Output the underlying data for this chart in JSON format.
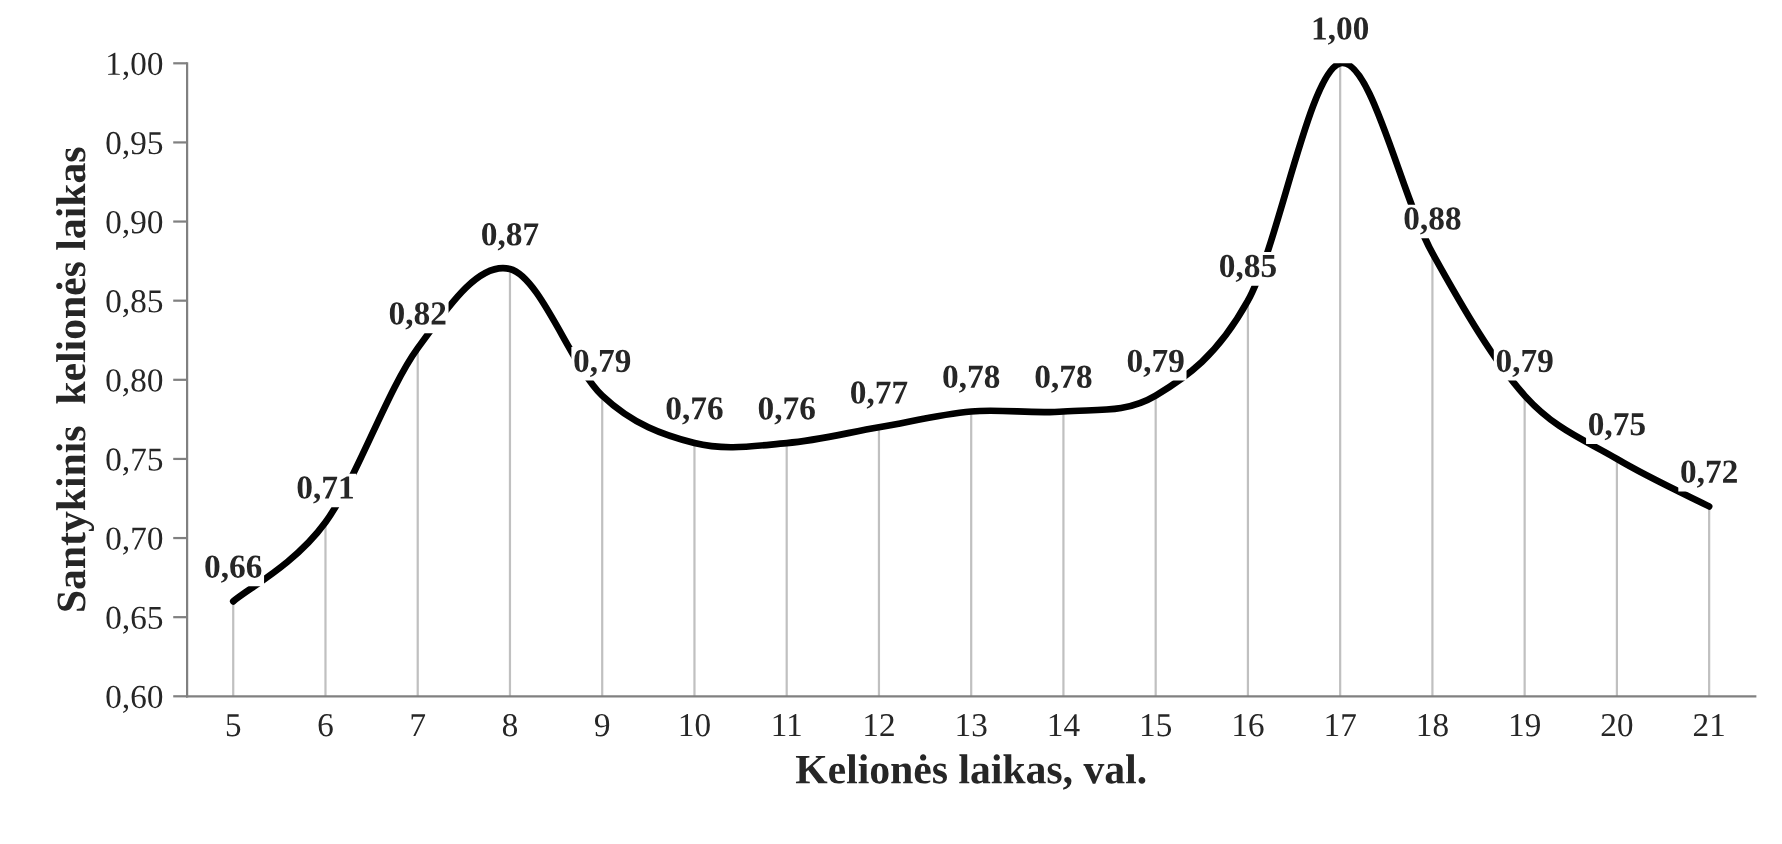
{
  "chart_data": {
    "type": "line",
    "xlabel": "Kelionės laikas, val.",
    "ylabel": "Santykinis  kelionės laikas",
    "categories": [
      "5",
      "6",
      "7",
      "8",
      "9",
      "10",
      "11",
      "12",
      "13",
      "14",
      "15",
      "16",
      "17",
      "18",
      "19",
      "20",
      "21"
    ],
    "series": [
      {
        "color": "#000000",
        "values": [
          0.66,
          0.71,
          0.82,
          0.87,
          0.79,
          0.76,
          0.76,
          0.77,
          0.78,
          0.78,
          0.79,
          0.85,
          1.0,
          0.88,
          0.79,
          0.75,
          0.72
        ],
        "value_labels": [
          "0,66",
          "0,71",
          "0,82",
          "0,87",
          "0,79",
          "0,76",
          "0,76",
          "0,77",
          "0,78",
          "0,78",
          "0,79",
          "0,85",
          "1,00",
          "0,88",
          "0,79",
          "0,75",
          "0,72"
        ]
      }
    ],
    "ylim": [
      0.6,
      1.0
    ],
    "yticks": [
      {
        "value": 0.6,
        "label": "0,60"
      },
      {
        "value": 0.65,
        "label": "0,65"
      },
      {
        "value": 0.7,
        "label": "0,70"
      },
      {
        "value": 0.75,
        "label": "0,75"
      },
      {
        "value": 0.8,
        "label": "0,80"
      },
      {
        "value": 0.85,
        "label": "0,85"
      },
      {
        "value": 0.9,
        "label": "0,90"
      },
      {
        "value": 0.95,
        "label": "0,95"
      },
      {
        "value": 1.0,
        "label": "1,00"
      }
    ],
    "grid": "x",
    "legend": false,
    "marker": "none",
    "line_style": "solid"
  }
}
